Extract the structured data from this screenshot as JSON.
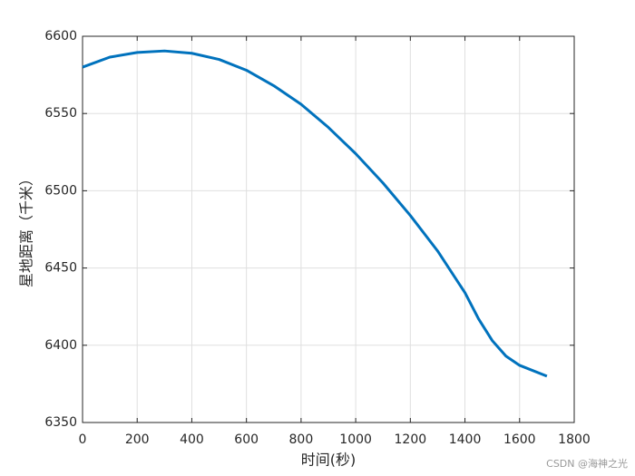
{
  "chart_data": {
    "type": "line",
    "xlabel": "时间(秒)",
    "ylabel": "星地距离（千米）",
    "x": [
      0,
      100,
      200,
      300,
      400,
      500,
      600,
      700,
      800,
      900,
      1000,
      1100,
      1200,
      1300,
      1400,
      1450,
      1500,
      1550,
      1600,
      1700
    ],
    "series": [
      {
        "name": "星地距离",
        "color": "#0072bd",
        "values": [
          6580,
          6586.5,
          6589.5,
          6590.5,
          6589,
          6585,
          6578,
          6568,
          6556,
          6541,
          6524,
          6505,
          6484,
          6461,
          6434,
          6417,
          6403,
          6393,
          6387,
          6380
        ]
      }
    ],
    "xlim": [
      0,
      1800
    ],
    "xticks": [
      0,
      200,
      400,
      600,
      800,
      1000,
      1200,
      1400,
      1600,
      1800
    ],
    "ylim": [
      6350,
      6600
    ],
    "yticks": [
      6350,
      6400,
      6450,
      6500,
      6550,
      6600
    ],
    "grid": true,
    "watermark": "CSDN @海神之光"
  }
}
